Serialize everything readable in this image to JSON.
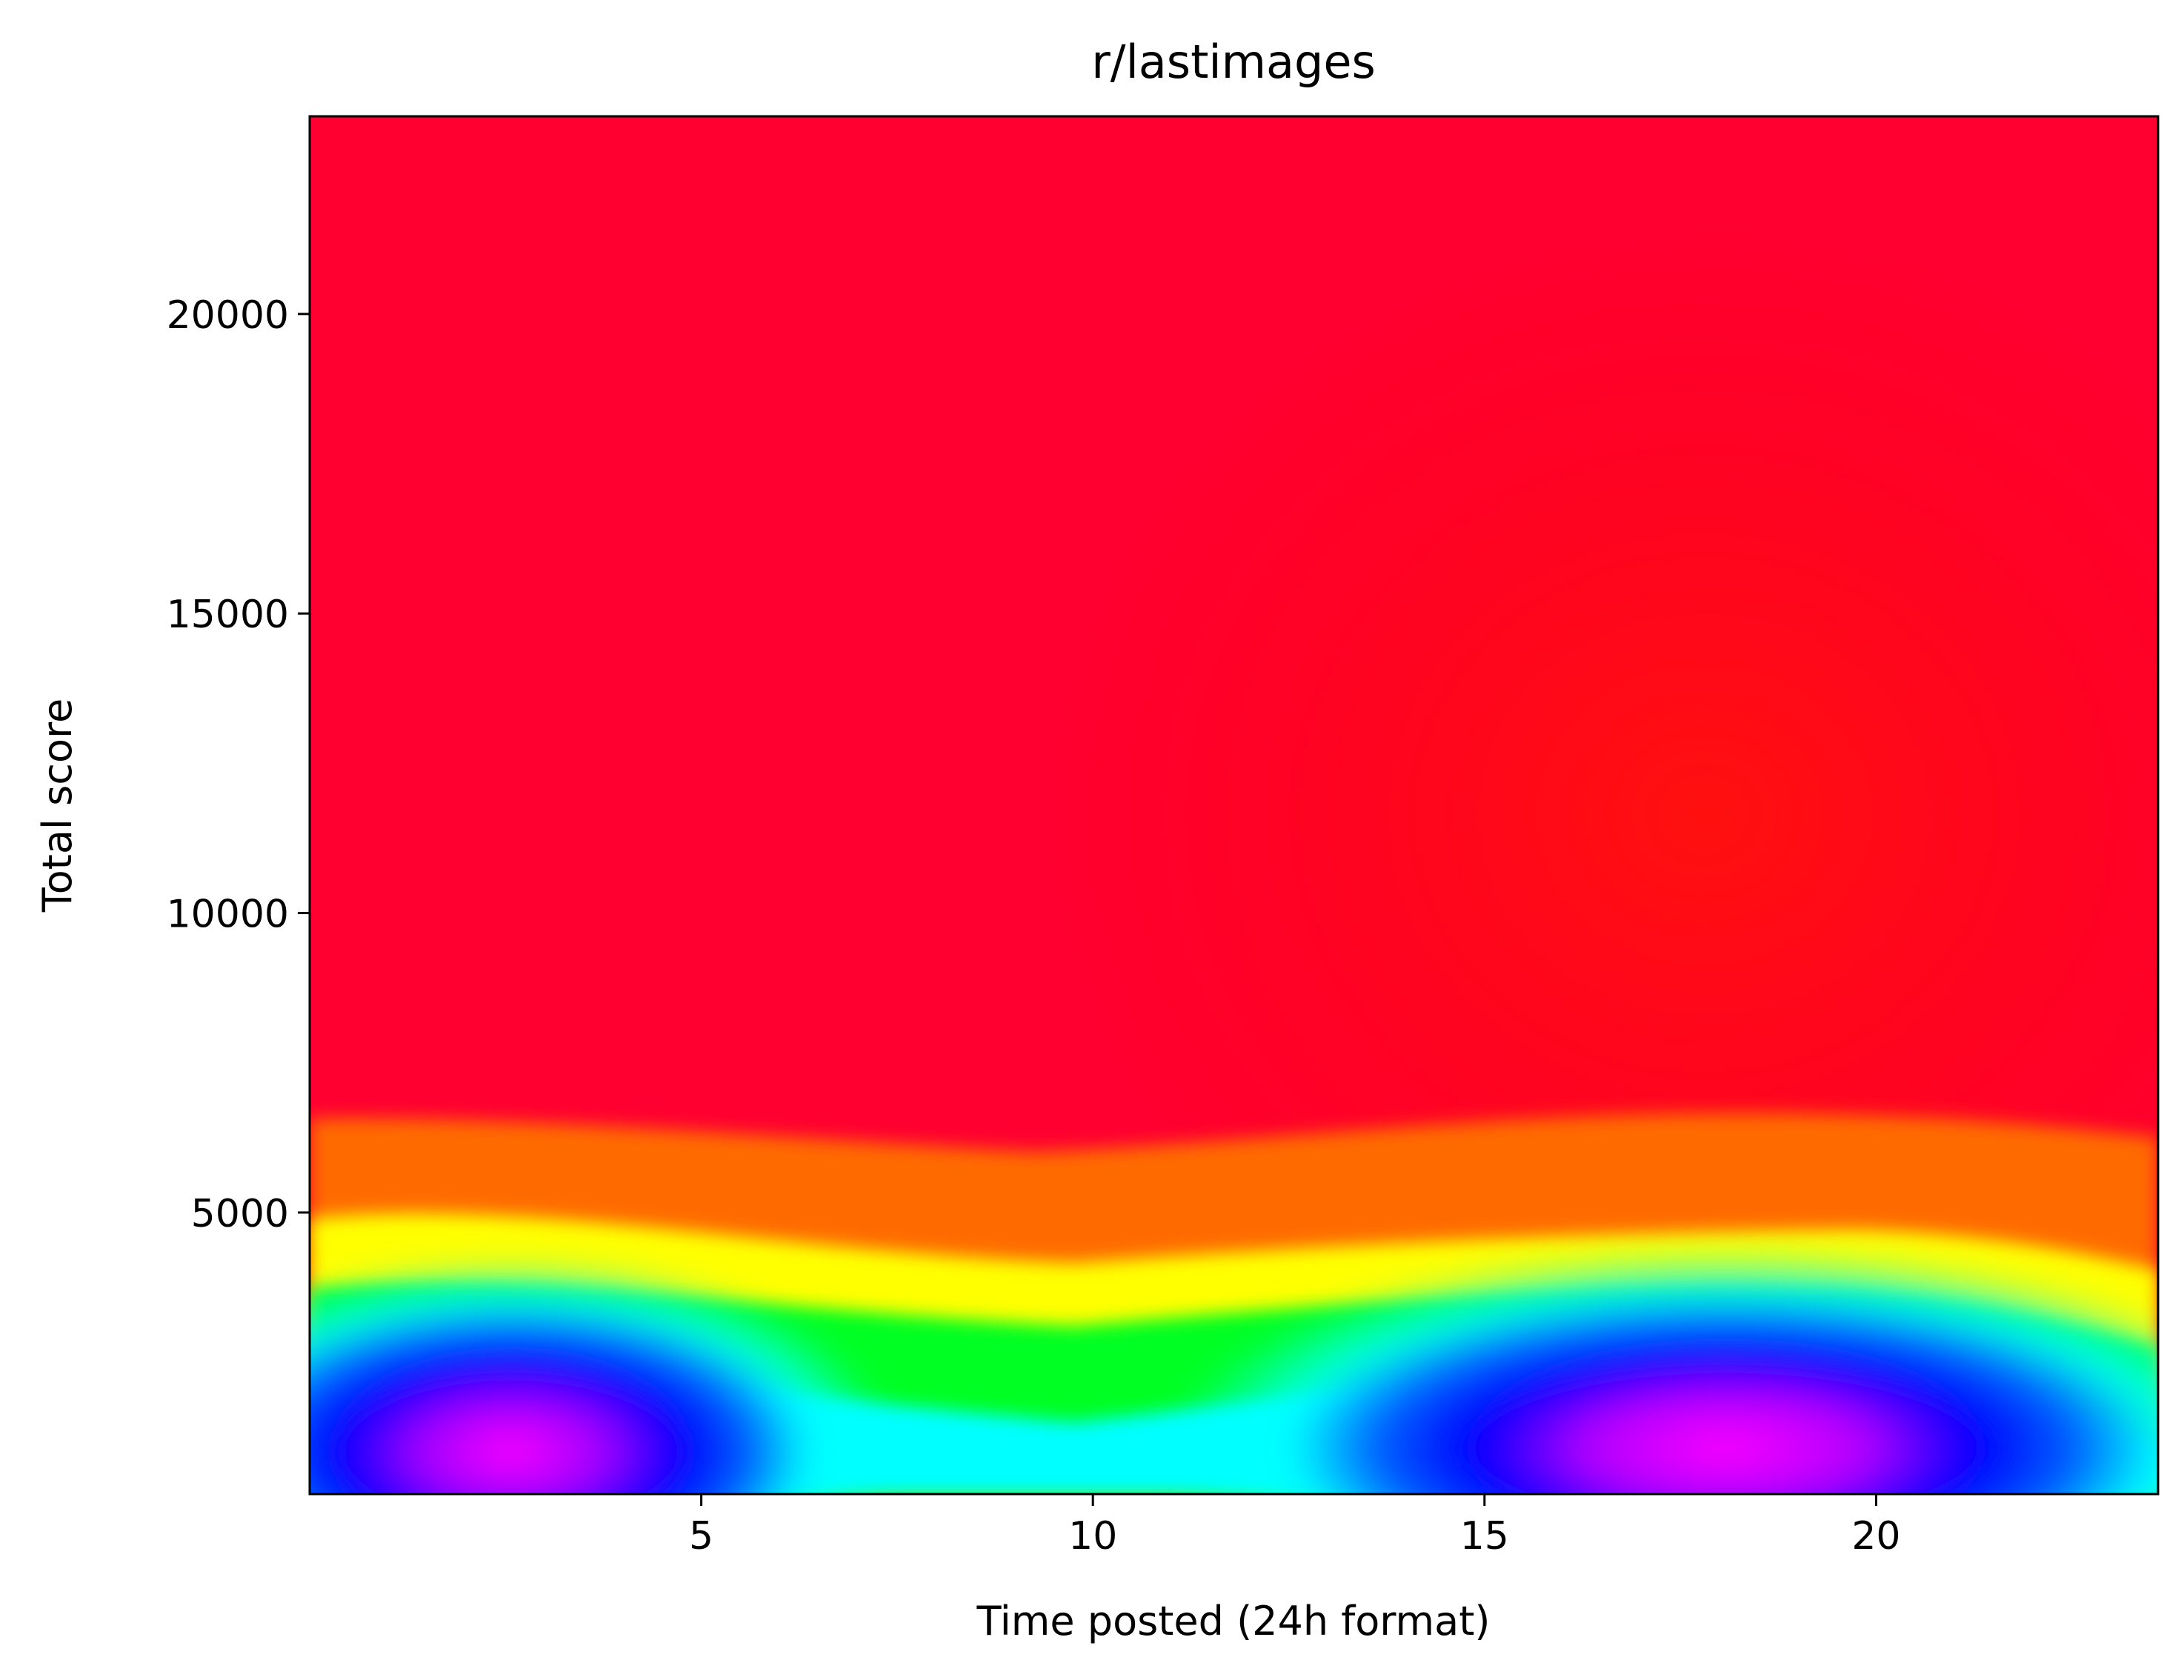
{
  "chart_data": {
    "type": "heatmap",
    "title": "r/lastimages",
    "xlabel": "Time posted (24h format)",
    "ylabel": "Total score",
    "xlim": [
      0,
      23.6
    ],
    "ylim": [
      300,
      23300
    ],
    "x_ticks": [
      5,
      10,
      15,
      20
    ],
    "y_ticks": [
      5000,
      10000,
      15000,
      20000
    ],
    "colormap": "gist_rainbow",
    "grid": false,
    "density_peaks": [
      {
        "x": 3.3,
        "y": 900,
        "level": "max"
      },
      {
        "x": 17.5,
        "y": 1000,
        "level": "max"
      }
    ]
  }
}
